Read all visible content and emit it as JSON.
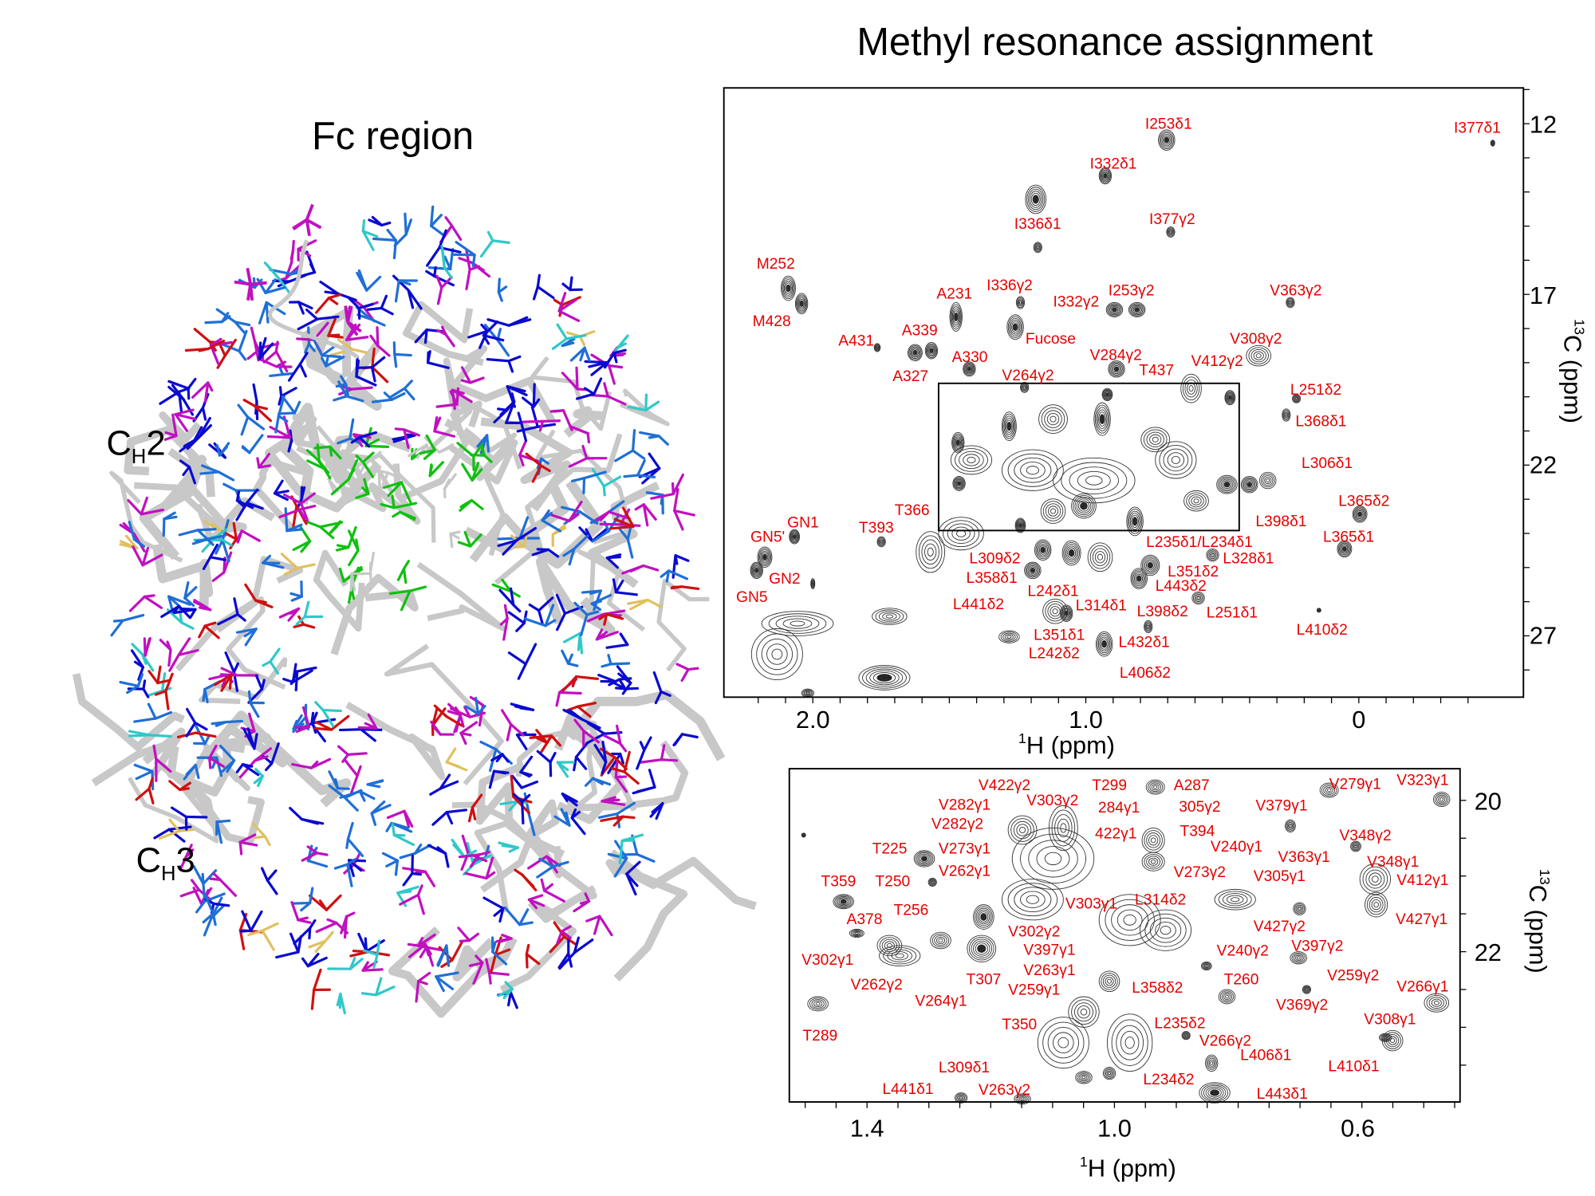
{
  "titles": {
    "fc_region": "Fc region",
    "methyl": "Methyl resonance assignment"
  },
  "domains": {
    "ch2_main": "C",
    "ch2_sub": "H",
    "ch2_num": "2",
    "ch3_main": "C",
    "ch3_sub": "H",
    "ch3_num": "3"
  },
  "colors": {
    "label": "#e60000",
    "contour": "#333333",
    "structure": [
      "#c8c8c8",
      "#1f6fd6",
      "#0a0ad0",
      "#c010c0",
      "#10c010",
      "#d01010",
      "#30c8c8",
      "#e0c060"
    ]
  },
  "spectrum_full": {
    "x_axis": {
      "sup": "1",
      "label": "H (ppm)",
      "ticks": [
        "2.0",
        "1.0",
        "0"
      ]
    },
    "y_axis": {
      "sup": "13",
      "label": "C (ppm)",
      "ticks": [
        "12",
        "17",
        "22",
        "27"
      ]
    },
    "labels": [
      "I253δ1",
      "I377δ1",
      "I332δ1",
      "I336δ1",
      "I377γ2",
      "M252",
      "I336γ2",
      "I253γ2",
      "I332γ2",
      "V363γ2",
      "A231",
      "M428",
      "A339",
      "Fucose",
      "A431",
      "V308γ2",
      "A330",
      "V284γ2",
      "V412γ2",
      "A327",
      "V264γ2",
      "T437",
      "L251δ2",
      "L368δ1",
      "L306δ1",
      "L365δ2",
      "T366",
      "L398δ1",
      "GN1",
      "T393",
      "GN5'",
      "L365δ1",
      "L235δ1/L234δ1",
      "L309δ2",
      "L328δ1",
      "L358δ1",
      "GN2",
      "L351δ2",
      "L242δ1",
      "L443δ2",
      "GN5",
      "L441δ2",
      "L314δ1",
      "L398δ2",
      "L251δ1",
      "L410δ2",
      "L351δ1",
      "L432δ1",
      "L242δ2",
      "L406δ2"
    ]
  },
  "spectrum_zoom": {
    "x_axis": {
      "sup": "1",
      "label": "H (ppm)",
      "ticks": [
        "1.4",
        "1.0",
        "0.6"
      ]
    },
    "y_axis": {
      "sup": "13",
      "label": "C (ppm)",
      "ticks": [
        "20",
        "22"
      ]
    },
    "labels": [
      "V422γ2",
      "T299",
      "A287",
      "V279γ1",
      "V323γ1",
      "V303γ2",
      "V282γ1",
      "284γ1",
      "305γ2",
      "V379γ1",
      "V282γ2",
      "422γ1",
      "T394",
      "V348γ2",
      "T225",
      "V273γ1",
      "V240γ1",
      "V363γ1",
      "V348γ1",
      "V262γ1",
      "T250",
      "V273γ2",
      "V305γ1",
      "V412γ1",
      "T359",
      "L314δ2",
      "V303γ1",
      "T256",
      "A378",
      "V427γ1",
      "V427γ2",
      "V302γ2",
      "V397γ2",
      "V397γ1",
      "V240γ2",
      "V302γ1",
      "V263γ1",
      "V262γ2",
      "T307",
      "V259γ1",
      "L358δ2",
      "T260",
      "V259γ2",
      "V266γ1",
      "V264γ1",
      "V369γ2",
      "V308γ1",
      "T350",
      "L235δ2",
      "T289",
      "V266γ2",
      "L406δ1",
      "L309δ1",
      "L410δ1",
      "L234δ2",
      "L441δ1",
      "V263γ2",
      "L443δ1"
    ]
  }
}
